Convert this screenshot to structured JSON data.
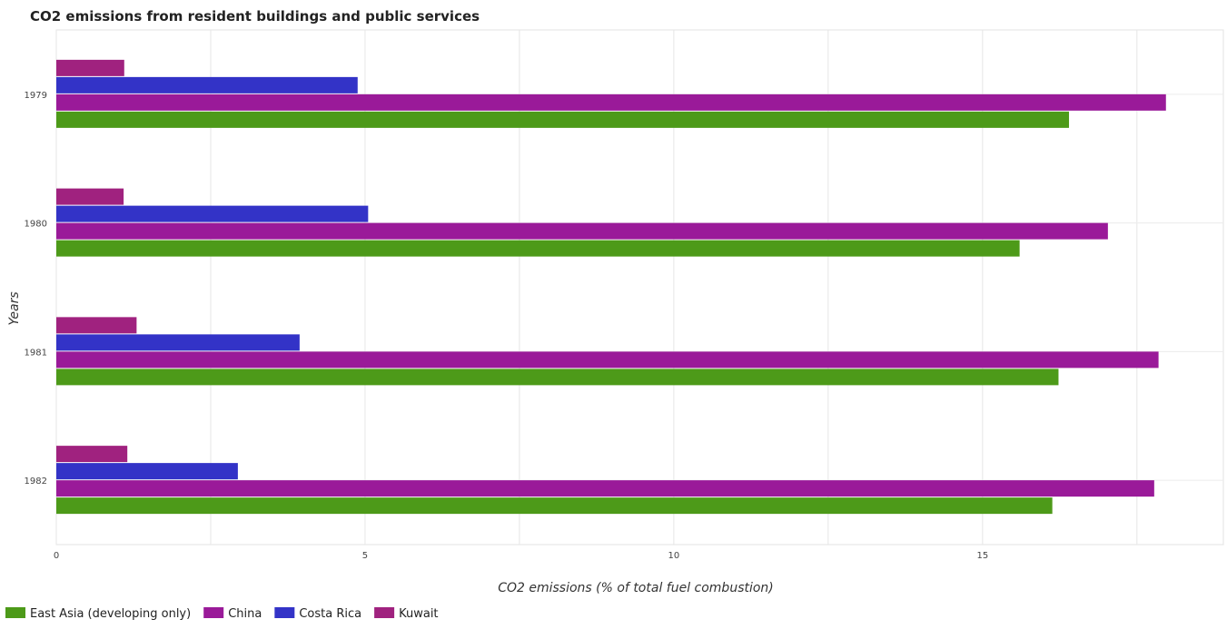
{
  "chart_data": {
    "type": "bar",
    "orientation": "horizontal",
    "title": "CO2 emissions from resident buildings and public services",
    "xlabel": "CO2 emissions (% of total fuel combustion)",
    "ylabel": "Years",
    "categories": [
      "1979",
      "1980",
      "1981",
      "1982"
    ],
    "xlim": [
      0,
      18.9
    ],
    "xticks": [
      "0",
      "5",
      "10",
      "15"
    ],
    "grid": true,
    "legend_position": "bottom-left",
    "series": [
      {
        "name": "East Asia (developing only)",
        "color": "#4d9a19",
        "values": [
          16.4,
          15.6,
          16.23,
          16.13
        ]
      },
      {
        "name": "China",
        "color": "#9a1a99",
        "values": [
          17.97,
          17.03,
          17.85,
          17.78
        ]
      },
      {
        "name": "Costa Rica",
        "color": "#3333c7",
        "values": [
          4.88,
          5.05,
          3.94,
          2.94
        ]
      },
      {
        "name": "Kuwait",
        "color": "#a0227f",
        "values": [
          1.1,
          1.09,
          1.3,
          1.15
        ]
      }
    ]
  }
}
